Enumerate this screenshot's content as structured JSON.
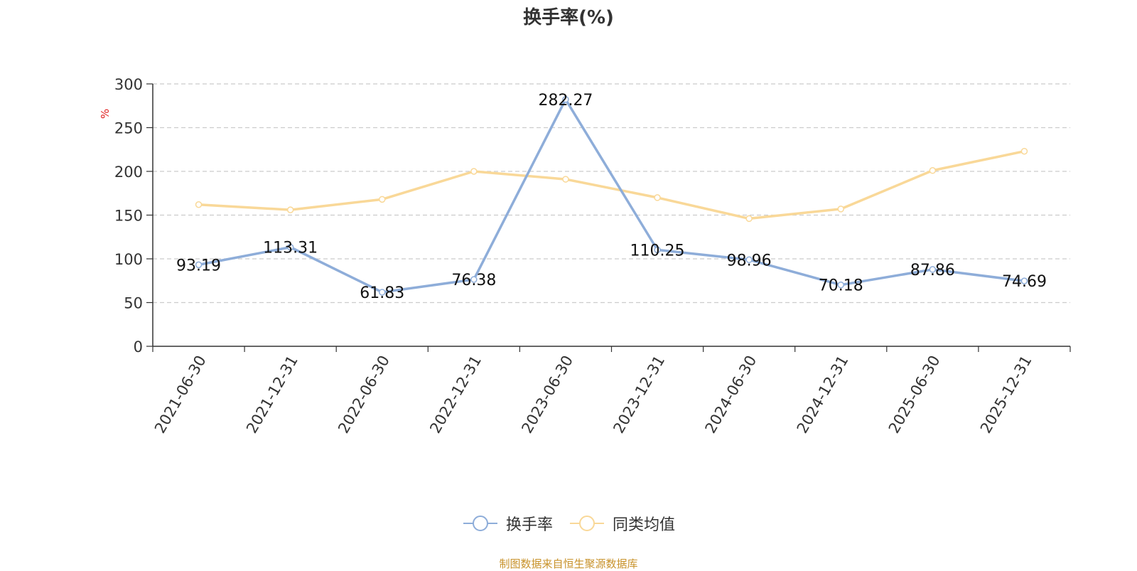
{
  "chart_data": {
    "type": "line",
    "title": "换手率(%)",
    "ylabel": "%",
    "ylim": [
      0,
      300
    ],
    "yticks": [
      0,
      50,
      100,
      150,
      200,
      250,
      300
    ],
    "grid": true,
    "legend_position": "bottom",
    "categories": [
      "2021-06-30",
      "2021-12-31",
      "2022-06-30",
      "2022-12-31",
      "2023-06-30",
      "2023-12-31",
      "2024-06-30",
      "2024-12-31",
      "2025-06-30",
      "2025-12-31"
    ],
    "series": [
      {
        "name": "换手率",
        "color": "#8eadd9",
        "values": [
          93.19,
          113.31,
          61.83,
          76.38,
          282.27,
          110.25,
          98.96,
          70.18,
          87.86,
          74.69
        ],
        "show_labels": true
      },
      {
        "name": "同类均值",
        "color": "#f9d898",
        "values": [
          162,
          156,
          168,
          200,
          191,
          170,
          146,
          157,
          201,
          223
        ],
        "show_labels": false
      }
    ]
  },
  "source_text": "制图数据来自恒生聚源数据库"
}
